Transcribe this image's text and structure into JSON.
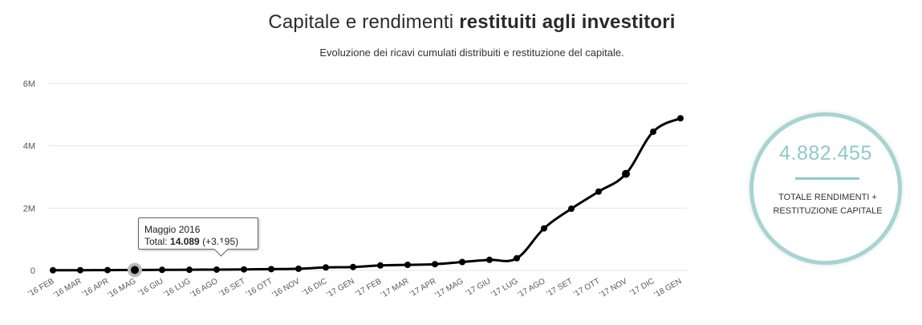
{
  "header": {
    "title_regular": "Capitale e rendimenti ",
    "title_bold": "restituiti agli investitori",
    "subtitle": "Evoluzione dei ricavi cumulati distribuiti e restituzione del capitale."
  },
  "tooltip": {
    "month": "Maggio 2016",
    "total_label": "Total:",
    "total_value": "14.089",
    "delta": "(+3.195)"
  },
  "summary": {
    "value": "4.882.455",
    "label": "TOTALE RENDIMENTI + RESTITUZIONE CAPITALE",
    "ring_color": "#a6d4d3",
    "accent_color": "#8fcac8"
  },
  "chart_data": {
    "type": "line",
    "categories": [
      "'16 FEB",
      "'16 MAR",
      "'16 APR",
      "'16 MAG",
      "'16 GIU",
      "'16 LUG",
      "'16 AGO",
      "'16 SET",
      "'16 OTT",
      "'16 NOV",
      "'16 DIC",
      "'17 GEN",
      "'17 FEB",
      "'17 MAR",
      "'17 APR",
      "'17 MAG",
      "'17 GIU",
      "'17 LUG",
      "'17 AGO",
      "'17 SET",
      "'17 OTT",
      "'17 NOV",
      "'17 DIC",
      "'18 GEN"
    ],
    "series": [
      {
        "values": [
          5000,
          8000,
          10894,
          14089,
          18000,
          22000,
          27000,
          33000,
          42000,
          55000,
          95000,
          110000,
          160000,
          180000,
          200000,
          270000,
          340000,
          390000,
          1350000,
          1980000,
          2530000,
          3100000,
          4450000,
          4882455
        ],
        "color": "#000000"
      }
    ],
    "ylim": [
      0,
      6000000
    ],
    "y_ticks": [
      {
        "value": 0,
        "label": "0"
      },
      {
        "value": 2000000,
        "label": "2M"
      },
      {
        "value": 4000000,
        "label": "4M"
      },
      {
        "value": 6000000,
        "label": "6M"
      }
    ],
    "highlight_index": 3,
    "highlight_color": "#bbbbbb",
    "gridlines": true
  }
}
